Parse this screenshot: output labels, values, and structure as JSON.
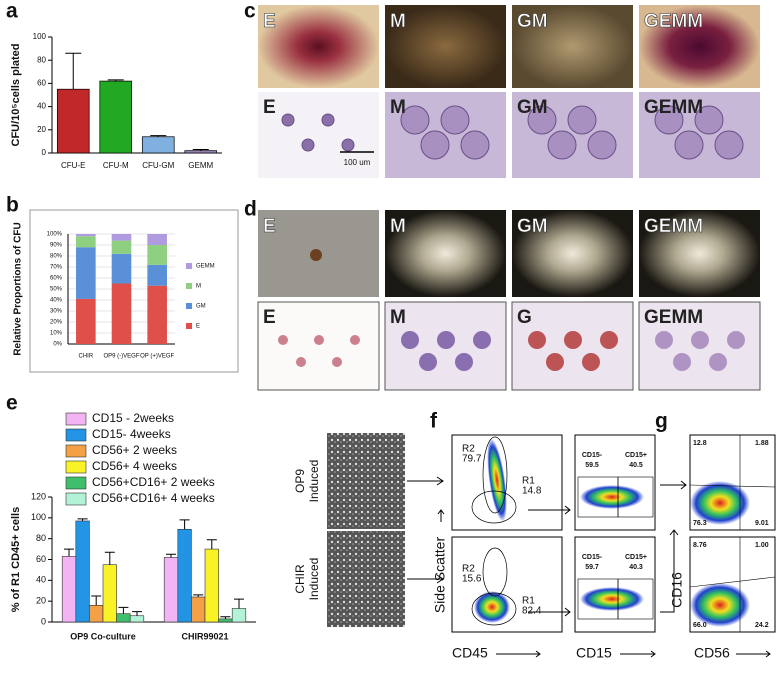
{
  "chart_data": [
    {
      "type": "bar",
      "ylabel": "CFU/10⁵cells plated",
      "categories": [
        "CFU-E",
        "CFU-M",
        "CFU-GM",
        "GEMM"
      ],
      "values": [
        55,
        62,
        14,
        2
      ],
      "errors": [
        31,
        1,
        1,
        1
      ],
      "colors": [
        "#c0282a",
        "#22a822",
        "#7fb0e0",
        "#9a80b8"
      ],
      "ylim": [
        0,
        100
      ],
      "yticks": [
        0,
        20,
        40,
        60,
        80,
        100
      ]
    },
    {
      "type": "stacked_bar",
      "ylabel": "Relative Proportions of CFU",
      "categories": [
        "CHIR",
        "OP9 (-)VEGF",
        "OP (+)VEGF"
      ],
      "series": [
        {
          "name": "E",
          "color": "#e0504a",
          "values": [
            41,
            55,
            53
          ]
        },
        {
          "name": "GM",
          "color": "#5a90d8",
          "values": [
            47,
            27,
            19
          ]
        },
        {
          "name": "M",
          "color": "#8ed080",
          "values": [
            10,
            12,
            18
          ]
        },
        {
          "name": "GEMM",
          "color": "#b09ae0",
          "values": [
            2,
            6,
            10
          ]
        }
      ],
      "legend": "right",
      "ylim": [
        0,
        100
      ],
      "yticks": [
        {
          "value": 0,
          "label": "0%"
        },
        {
          "value": 10,
          "label": "10%"
        },
        {
          "value": 20,
          "label": "20%"
        },
        {
          "value": 30,
          "label": "30%"
        },
        {
          "value": 40,
          "label": "40%"
        },
        {
          "value": 50,
          "label": "50%"
        },
        {
          "value": 60,
          "label": "60%"
        },
        {
          "value": 70,
          "label": "70%"
        },
        {
          "value": 80,
          "label": "80%"
        },
        {
          "value": 90,
          "label": "90%"
        },
        {
          "value": 100,
          "label": "100%"
        }
      ]
    },
    {
      "type": "grouped_bar",
      "ylabel": "% of R1 CD45+ cells",
      "categories": [
        "OP9 Co-culture",
        "CHIR99021"
      ],
      "series": [
        {
          "name": "CD15 - 2weeks",
          "color": "#f2b4f2",
          "values": [
            63,
            62
          ],
          "errors": [
            7,
            3
          ]
        },
        {
          "name": "CD15- 4weeks",
          "color": "#2394e4",
          "values": [
            97,
            89
          ],
          "errors": [
            2,
            9
          ]
        },
        {
          "name": "CD56+ 2 weeks",
          "color": "#f3a046",
          "values": [
            16,
            24
          ],
          "errors": [
            9,
            2
          ]
        },
        {
          "name": "CD56+ 4 weeks",
          "color": "#f8f226",
          "values": [
            55,
            70
          ],
          "errors": [
            12,
            9
          ]
        },
        {
          "name": "CD56+CD16+ 2 weeks",
          "color": "#3fbf6c",
          "values": [
            8,
            3
          ],
          "errors": [
            6,
            2
          ]
        },
        {
          "name": "CD56+CD16+ 4 weeks",
          "color": "#b2f2d6",
          "values": [
            6,
            13
          ],
          "errors": [
            4,
            9
          ]
        }
      ],
      "legend": "top",
      "ylim": [
        0,
        120
      ],
      "yticks": [
        0,
        20,
        40,
        60,
        80,
        100,
        120
      ]
    }
  ],
  "panels": {
    "letters": [
      "a",
      "b",
      "c",
      "d",
      "e",
      "f",
      "g"
    ],
    "c": {
      "top": [
        "E",
        "M",
        "GM",
        "GEMM"
      ],
      "bottom": [
        "E",
        "M",
        "GM",
        "GEMM"
      ],
      "scale": "100 um"
    },
    "d": {
      "top": [
        "E",
        "M",
        "GM",
        "GEMM"
      ],
      "bottom": [
        "E",
        "M",
        "G",
        "GEMM"
      ]
    },
    "e_images": [
      [
        "OP9",
        "Induced"
      ],
      [
        "CHIR",
        "Induced"
      ]
    ],
    "f": {
      "scatter": [
        [
          "R2",
          "79.7",
          "R1",
          "14.8"
        ],
        [
          "R2",
          "15.6",
          "R1",
          "82.4"
        ]
      ],
      "cd15": [
        [
          "CD15-",
          "59.5",
          "CD15+",
          "40.5"
        ],
        [
          "CD15-",
          "59.7",
          "CD15+",
          "40.3"
        ]
      ],
      "axes": [
        "Side Scatter",
        "CD45",
        "CD15"
      ]
    },
    "g": {
      "quadrants": [
        [
          "12.8",
          "1.88",
          "76.3",
          "9.01"
        ],
        [
          "8.76",
          "1.00",
          "66.0",
          "24.2"
        ]
      ],
      "axes": [
        "CD16",
        "CD56"
      ]
    }
  }
}
